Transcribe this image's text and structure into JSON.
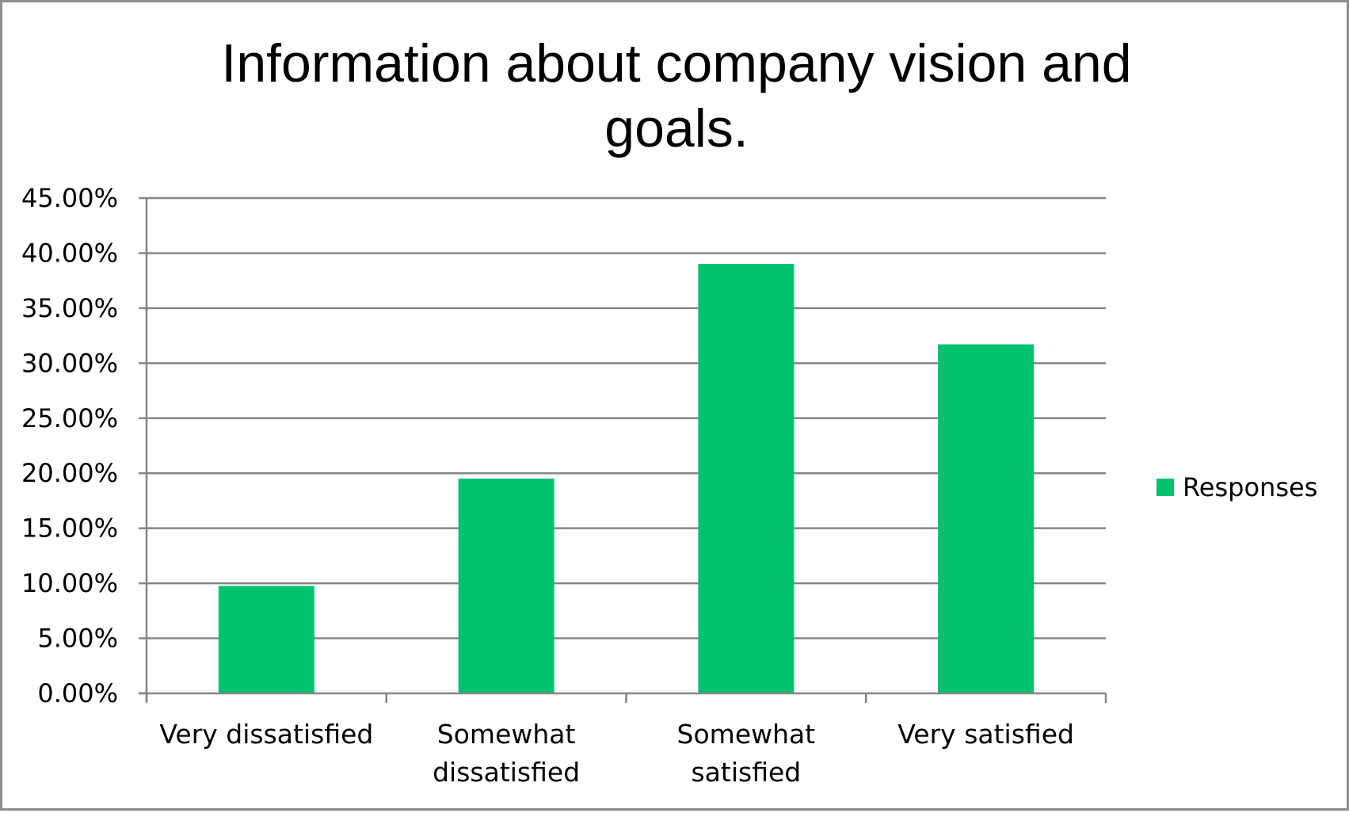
{
  "chart_data": {
    "type": "bar",
    "title": "Information about company vision and goals.",
    "title_lines": [
      "Information about company vision and",
      "goals."
    ],
    "categories": [
      "Very dissatisfied",
      "Somewhat dissatisfied",
      "Somewhat satisfied",
      "Very satisfied"
    ],
    "category_lines": [
      [
        "Very dissatisfied"
      ],
      [
        "Somewhat",
        "dissatisfied"
      ],
      [
        "Somewhat",
        "satisfied"
      ],
      [
        "Very satisfied"
      ]
    ],
    "series": [
      {
        "name": "Responses",
        "values": [
          9.76,
          19.51,
          39.02,
          31.71
        ],
        "color": "#00c170"
      }
    ],
    "ylim": [
      0,
      45
    ],
    "yticks": [
      0,
      5,
      10,
      15,
      20,
      25,
      30,
      35,
      40,
      45
    ],
    "ytick_labels": [
      "0.00%",
      "5.00%",
      "10.00%",
      "15.00%",
      "20.00%",
      "25.00%",
      "30.00%",
      "35.00%",
      "40.00%",
      "45.00%"
    ],
    "grid": true,
    "legend_position": "right",
    "gridline_color": "#868686",
    "axis_color": "#868686"
  }
}
